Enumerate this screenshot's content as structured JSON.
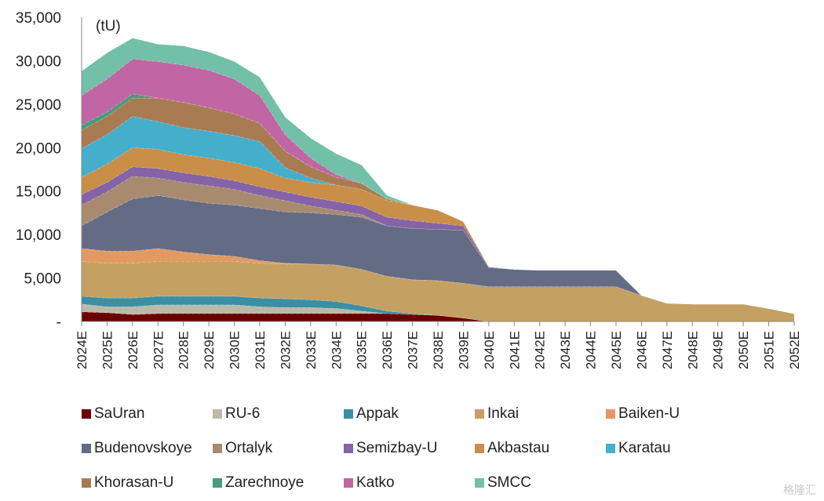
{
  "chart_data": {
    "type": "area",
    "stacked": true,
    "title": "",
    "unit_label": "(tU)",
    "xlabel": "",
    "ylabel": "(tU)",
    "ylim": [
      0,
      35000
    ],
    "yticks": [
      0,
      5000,
      10000,
      15000,
      20000,
      25000,
      30000,
      35000
    ],
    "ytick_labels": [
      "-",
      "5,000",
      "10,000",
      "15,000",
      "20,000",
      "25,000",
      "30,000",
      "35,000"
    ],
    "grid": false,
    "legend_position": "bottom",
    "categories": [
      "2024E",
      "2025E",
      "2026E",
      "2027E",
      "2028E",
      "2029E",
      "2030E",
      "2031E",
      "2032E",
      "2033E",
      "2034E",
      "2035E",
      "2036E",
      "2037E",
      "2038E",
      "2039E",
      "2040E",
      "2041E",
      "2042E",
      "2043E",
      "2044E",
      "2045E",
      "2046E",
      "2047E",
      "2048E",
      "2049E",
      "2050E",
      "2051E",
      "2052E"
    ],
    "series": [
      {
        "name": "SaUran",
        "color": "#6b0000",
        "values": [
          1100,
          1000,
          800,
          900,
          900,
          900,
          900,
          900,
          900,
          900,
          900,
          900,
          900,
          800,
          700,
          400,
          0,
          0,
          0,
          0,
          0,
          0,
          0,
          0,
          0,
          0,
          0,
          0,
          0
        ]
      },
      {
        "name": "RU-6",
        "color": "#bdb9a8",
        "values": [
          900,
          700,
          900,
          1000,
          1000,
          1000,
          1000,
          800,
          700,
          700,
          600,
          300,
          0,
          0,
          0,
          0,
          0,
          0,
          0,
          0,
          0,
          0,
          0,
          0,
          0,
          0,
          0,
          0,
          0
        ]
      },
      {
        "name": "Appak",
        "color": "#3a8fa3",
        "values": [
          900,
          1000,
          1000,
          1000,
          1000,
          1000,
          1000,
          1000,
          1000,
          900,
          800,
          600,
          300,
          100,
          0,
          0,
          0,
          0,
          0,
          0,
          0,
          0,
          0,
          0,
          0,
          0,
          0,
          0,
          0
        ]
      },
      {
        "name": "Inkai",
        "color": "#c4a162",
        "values": [
          4000,
          4000,
          4000,
          4000,
          4000,
          4000,
          4000,
          4000,
          4000,
          4100,
          4200,
          4200,
          4000,
          3900,
          4000,
          4000,
          4000,
          4000,
          4000,
          4000,
          4000,
          4000,
          3000,
          2100,
          2000,
          2000,
          2000,
          1500,
          900
        ]
      },
      {
        "name": "Baiken-U",
        "color": "#e39a62",
        "values": [
          1500,
          1400,
          1400,
          1500,
          1100,
          800,
          600,
          300,
          100,
          0,
          0,
          0,
          0,
          0,
          0,
          0,
          0,
          0,
          0,
          0,
          0,
          0,
          0,
          0,
          0,
          0,
          0,
          0,
          0
        ]
      },
      {
        "name": "Budenovskoye",
        "color": "#646b85",
        "values": [
          2600,
          4500,
          6000,
          6100,
          6000,
          5900,
          5900,
          6000,
          5900,
          5900,
          5800,
          6000,
          5800,
          5900,
          5900,
          6100,
          2200,
          2000,
          1900,
          1900,
          1900,
          1900,
          0,
          0,
          0,
          0,
          0,
          0,
          0
        ]
      },
      {
        "name": "Ortalyk",
        "color": "#a88b6f",
        "values": [
          2400,
          2300,
          2600,
          2000,
          2000,
          2000,
          1800,
          1500,
          1300,
          800,
          500,
          300,
          0,
          0,
          0,
          0,
          0,
          0,
          0,
          0,
          0,
          0,
          0,
          0,
          0,
          0,
          0,
          0,
          0
        ]
      },
      {
        "name": "Semizbay-U",
        "color": "#8563a6",
        "values": [
          1200,
          1100,
          1100,
          1100,
          1100,
          1100,
          1000,
          1000,
          1000,
          1000,
          1000,
          1000,
          1000,
          900,
          700,
          500,
          100,
          0,
          0,
          0,
          0,
          0,
          0,
          0,
          0,
          0,
          0,
          0,
          0
        ]
      },
      {
        "name": "Akbastau",
        "color": "#c98e48",
        "values": [
          2000,
          2100,
          2200,
          2200,
          2100,
          2100,
          2100,
          2100,
          1600,
          1700,
          1900,
          1900,
          1900,
          1800,
          1500,
          500,
          0,
          0,
          0,
          0,
          0,
          0,
          0,
          0,
          0,
          0,
          0,
          0,
          0
        ]
      },
      {
        "name": "Karatau",
        "color": "#45aecb",
        "values": [
          3300,
          3400,
          3600,
          3200,
          3100,
          3100,
          3100,
          3100,
          1200,
          500,
          0,
          0,
          0,
          0,
          0,
          0,
          0,
          0,
          0,
          0,
          0,
          0,
          0,
          0,
          0,
          0,
          0,
          0,
          0
        ]
      },
      {
        "name": "Khorasan-U",
        "color": "#a97b52",
        "values": [
          2100,
          2100,
          2100,
          2700,
          2900,
          2700,
          2500,
          2100,
          1900,
          1300,
          900,
          700,
          200,
          0,
          0,
          0,
          0,
          0,
          0,
          0,
          0,
          0,
          0,
          0,
          0,
          0,
          0,
          0,
          0
        ]
      },
      {
        "name": "Zarechnoye",
        "color": "#4a9a7c",
        "values": [
          600,
          500,
          500,
          0,
          0,
          0,
          0,
          0,
          0,
          0,
          0,
          0,
          0,
          0,
          0,
          0,
          0,
          0,
          0,
          0,
          0,
          0,
          0,
          0,
          0,
          0,
          0,
          0,
          0
        ]
      },
      {
        "name": "Katko",
        "color": "#c066a4",
        "values": [
          3400,
          3800,
          4000,
          4200,
          4300,
          4300,
          4000,
          3200,
          1900,
          1000,
          300,
          0,
          0,
          0,
          0,
          0,
          0,
          0,
          0,
          0,
          0,
          0,
          0,
          0,
          0,
          0,
          0,
          0,
          0
        ]
      },
      {
        "name": "SMCC",
        "color": "#72c0a7",
        "values": [
          2800,
          3000,
          2400,
          2000,
          2200,
          2100,
          2000,
          2100,
          2000,
          2300,
          2400,
          2100,
          400,
          0,
          0,
          0,
          0,
          0,
          0,
          0,
          0,
          0,
          0,
          0,
          0,
          0,
          0,
          0,
          0
        ]
      }
    ]
  },
  "watermark": "格隆汇"
}
